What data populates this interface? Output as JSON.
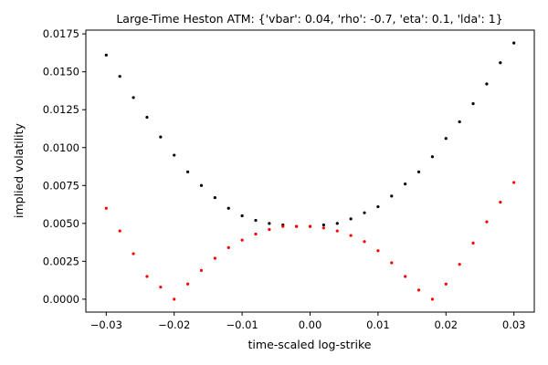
{
  "chart_data": {
    "type": "scatter",
    "title": "Large-Time Heston ATM: {'vbar': 0.04, 'rho': -0.7, 'eta': 0.1, 'lda': 1}",
    "xlabel": "time-scaled log-strike",
    "ylabel": "implied volatility",
    "xlim": [
      -0.033,
      0.033
    ],
    "ylim": [
      -0.00085,
      0.01775
    ],
    "xticks": [
      -0.03,
      -0.02,
      -0.01,
      0.0,
      0.01,
      0.02,
      0.03
    ],
    "xtick_labels": [
      "−0.03",
      "−0.02",
      "−0.01",
      "0.00",
      "0.01",
      "0.02",
      "0.03"
    ],
    "yticks": [
      0.0,
      0.0025,
      0.005,
      0.0075,
      0.01,
      0.0125,
      0.015,
      0.0175
    ],
    "ytick_labels": [
      "0.0000",
      "0.0025",
      "0.0050",
      "0.0075",
      "0.0100",
      "0.0125",
      "0.0150",
      "0.0175"
    ],
    "grid": false,
    "legend": "none",
    "series": [
      {
        "color": "#000000",
        "x": [
          -0.03,
          -0.028,
          -0.026,
          -0.024,
          -0.022,
          -0.02,
          -0.018,
          -0.016,
          -0.014,
          -0.012,
          -0.01,
          -0.008,
          -0.006,
          -0.004,
          -0.002,
          0.0,
          0.002,
          0.004,
          0.006,
          0.008,
          0.01,
          0.012,
          0.014,
          0.016,
          0.018,
          0.02,
          0.022,
          0.024,
          0.026,
          0.028,
          0.03
        ],
        "y": [
          0.0161,
          0.0147,
          0.0133,
          0.012,
          0.0107,
          0.0095,
          0.0084,
          0.0075,
          0.0067,
          0.006,
          0.0055,
          0.0052,
          0.005,
          0.0049,
          0.0048,
          0.0048,
          0.0049,
          0.005,
          0.0053,
          0.0057,
          0.0061,
          0.0068,
          0.0076,
          0.0084,
          0.0094,
          0.0106,
          0.0117,
          0.0129,
          0.0142,
          0.0156,
          0.0169
        ]
      },
      {
        "color": "#ff0000",
        "x": [
          -0.03,
          -0.028,
          -0.026,
          -0.024,
          -0.022,
          -0.02,
          -0.018,
          -0.016,
          -0.014,
          -0.012,
          -0.01,
          -0.008,
          -0.006,
          -0.004,
          -0.002,
          0.0,
          0.002,
          0.004,
          0.006,
          0.008,
          0.01,
          0.012,
          0.014,
          0.016,
          0.018,
          0.02,
          0.022,
          0.024,
          0.026,
          0.028,
          0.03
        ],
        "y": [
          0.006,
          0.0045,
          0.003,
          0.0015,
          0.0008,
          0.0,
          0.001,
          0.0019,
          0.0027,
          0.0034,
          0.0039,
          0.0043,
          0.0046,
          0.0048,
          0.0048,
          0.0048,
          0.0047,
          0.0045,
          0.0042,
          0.0038,
          0.0032,
          0.0024,
          0.0015,
          0.0006,
          0.0,
          0.001,
          0.0023,
          0.0037,
          0.0051,
          0.0064,
          0.0077
        ]
      }
    ]
  }
}
